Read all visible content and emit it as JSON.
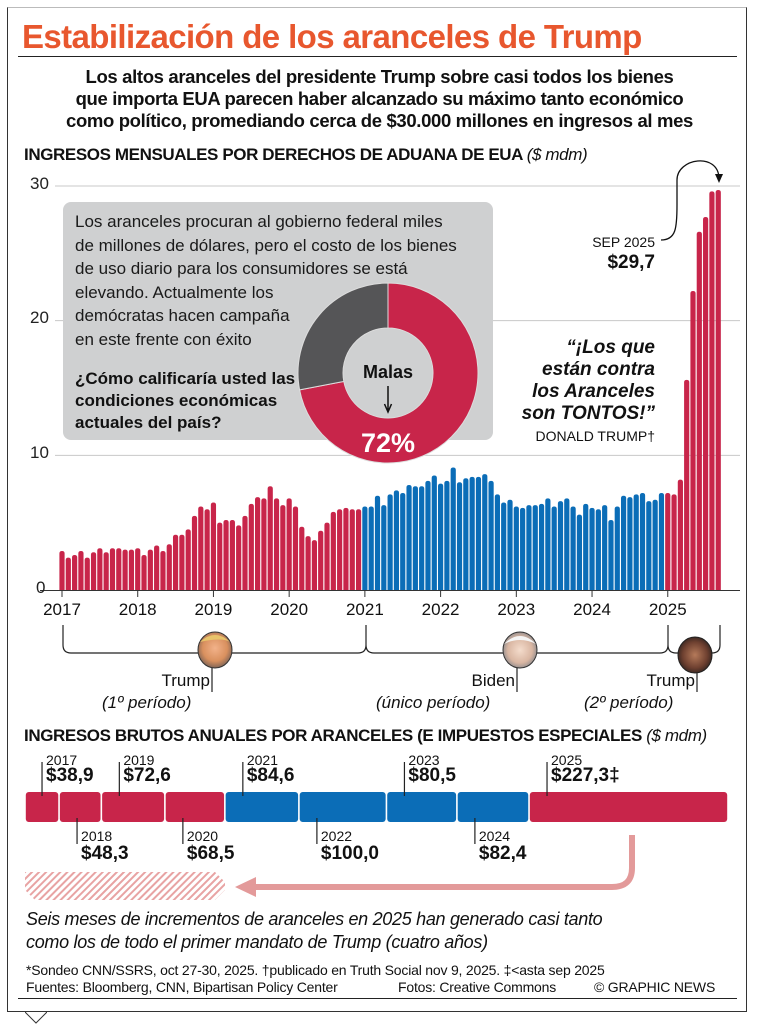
{
  "title": "Estabilización de los aranceles de Trump",
  "subtitle": [
    "Los altos aranceles del presidente Trump sobre casi todos los bienes",
    "que importa EUA parecen haber alcanzado su máximo tanto económico",
    "como político, promediando cerca de $30.000 millones en ingresos al mes"
  ],
  "monthly_header": {
    "text": "INGRESOS MENSUALES POR DERECHOS DE ADUANA DE EUA",
    "unit": "($ mdm)"
  },
  "annotation": {
    "label": "SEP 2025",
    "value": "$29,7"
  },
  "quote": {
    "lines": [
      "“¡Los que",
      "están contra",
      "los Aranceles",
      "son TONTOS!”"
    ],
    "author": "DONALD TRUMP†"
  },
  "poll": {
    "intro": [
      "Los aranceles procuran al gobierno federal miles",
      "de millones de dólares, pero el costo de los bienes",
      "de uso diario para los consumidores se está",
      "elevando. Actualmente los",
      "demócratas hacen campaña",
      "en este frente con éxito"
    ],
    "question": [
      "¿Cómo calificaría usted las",
      "condiciones económicas",
      "actuales del país?"
    ],
    "answer_label": "Malas",
    "percent_label": "72%"
  },
  "terms": [
    {
      "name": "Trump",
      "period": "(1º período)"
    },
    {
      "name": "Biden",
      "period": "(único período)"
    },
    {
      "name": "Trump",
      "period": "(2º período)"
    }
  ],
  "annual_header": {
    "text": "INGRESOS BRUTOS ANUALES POR ARANCELES (E IMPUESTOS ESPECIALES",
    "unit": "($ mdm)"
  },
  "note": [
    "Seis meses de incrementos de aranceles en 2025 han generado casi tanto",
    "como los de todo el primer mandato de Trump (cuatro años)"
  ],
  "footnotes": {
    "line1": "*Sondeo CNN/SSRS, oct 27-30, 2025. †publicado en Truth Social  nov 9, 2025. ‡<asta sep 2025",
    "sources": "Fuentes: Bloomberg, CNN, Bipartisan Policy Center",
    "photos": "Fotos: Creative Commons",
    "credit": "© GRAPHIC NEWS"
  },
  "colors": {
    "trump": "#c8254a",
    "biden": "#0b6db7",
    "title": "#e8572e",
    "poll_other": "#555557",
    "arrow": "#e39a9a"
  },
  "chart_data": [
    {
      "type": "bar",
      "title": "INGRESOS MENSUALES POR DERECHOS DE ADUANA DE EUA ($ mdm)",
      "ylim": [
        0,
        30
      ],
      "yticks": [
        "0",
        "10",
        "20",
        "30"
      ],
      "xticks": [
        "2017",
        "2018",
        "2019",
        "2020",
        "2021",
        "2022",
        "2023",
        "2024",
        "2025"
      ],
      "grid": true,
      "values_by_year": {
        "2017": [
          2.9,
          2.4,
          2.6,
          2.9,
          2.4,
          2.8,
          3.1,
          2.8,
          3.1,
          3.1,
          3.0,
          3.0
        ],
        "2018": [
          3.1,
          2.6,
          3.0,
          3.3,
          2.9,
          3.4,
          4.1,
          4.1,
          4.5,
          5.5,
          6.2,
          6.0
        ],
        "2019": [
          6.5,
          5.0,
          5.2,
          5.2,
          4.8,
          5.5,
          6.4,
          6.9,
          6.8,
          7.7,
          6.8,
          6.3
        ],
        "2020": [
          6.8,
          6.2,
          4.7,
          4.0,
          3.7,
          4.4,
          5.0,
          5.8,
          6.0,
          6.1,
          6.0,
          6.0
        ],
        "2021": [
          6.2,
          6.2,
          7.0,
          6.3,
          7.1,
          7.4,
          7.2,
          7.8,
          7.7,
          7.7,
          8.1,
          8.5
        ],
        "2022": [
          7.9,
          8.1,
          9.1,
          8.0,
          8.3,
          8.4,
          8.4,
          8.6,
          8.1,
          7.1,
          6.5,
          6.7
        ],
        "2023": [
          6.2,
          6.1,
          6.3,
          6.3,
          6.4,
          6.8,
          6.2,
          6.6,
          6.8,
          6.2,
          5.6,
          6.4
        ],
        "2024": [
          6.1,
          6.0,
          6.3,
          5.2,
          6.2,
          7.0,
          6.9,
          7.1,
          7.2,
          6.6,
          6.7,
          7.2
        ],
        "2025": [
          7.2,
          7.1,
          8.2,
          15.6,
          22.2,
          26.6,
          27.7,
          29.6,
          29.7
        ]
      },
      "administration_by_year": {
        "2017": "trump",
        "2018": "trump",
        "2019": "trump",
        "2020": "trump",
        "2021": "biden",
        "2022": "biden",
        "2023": "biden",
        "2024": "biden",
        "2025": "trump"
      }
    },
    {
      "type": "pie",
      "title": "¿Cómo calificaría usted las condiciones económicas actuales del país?",
      "slices": [
        {
          "label": "Malas",
          "value": 72
        },
        {
          "label": "",
          "value": 28
        }
      ]
    },
    {
      "type": "bar",
      "title": "INGRESOS BRUTOS ANUALES POR ARANCELES (E IMPUESTOS ESPECIALES ($ mdm)",
      "orientation": "stacked-horizontal",
      "categories": [
        "2017",
        "2018",
        "2019",
        "2020",
        "2021",
        "2022",
        "2023",
        "2024",
        "2025"
      ],
      "values": [
        38.9,
        48.3,
        72.6,
        68.5,
        84.6,
        100.0,
        80.5,
        82.4,
        227.3
      ],
      "labels": [
        "$38,9",
        "$48,3",
        "$72,6",
        "$68,5",
        "$84,6",
        "$100,0",
        "$80,5",
        "$82,4",
        "$227,3‡"
      ],
      "administration": [
        "trump",
        "trump",
        "trump",
        "trump",
        "biden",
        "biden",
        "biden",
        "biden",
        "trump"
      ]
    }
  ]
}
